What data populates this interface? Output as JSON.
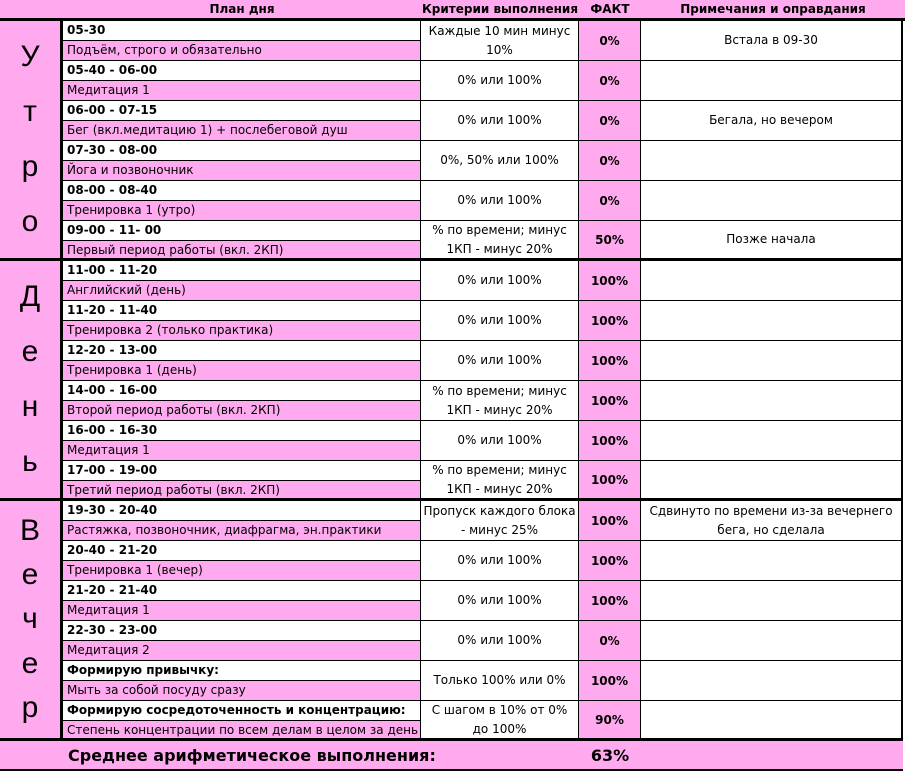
{
  "header": {
    "plan": "План дня",
    "criteria": "Критерии выполнения",
    "fact": "ФАКТ",
    "notes": "Примечания и оправдания"
  },
  "colors": {
    "accent_pink": "#ffaaee",
    "border": "#000000"
  },
  "sections": [
    {
      "label": "Утро",
      "letters": [
        "У",
        "т",
        "р",
        "о"
      ],
      "rows": [
        {
          "time": "05-30",
          "task": "Подъём, строго и обязательно",
          "criteria": "Каждые 10 мин минус 10%",
          "fact": "0%",
          "note": "Встала в 09-30"
        },
        {
          "time": "05-40 - 06-00",
          "task": "Медитация 1",
          "criteria": "0% или 100%",
          "fact": "0%",
          "note": ""
        },
        {
          "time": "06-00 - 07-15",
          "task": "Бег (вкл.медитацию 1) + послебеговой душ",
          "criteria": "0% или 100%",
          "fact": "0%",
          "note": "Бегала, но вечером"
        },
        {
          "time": "07-30 - 08-00",
          "task": "Йога и позвоночник",
          "criteria": "0%, 50% или 100%",
          "fact": "0%",
          "note": ""
        },
        {
          "time": "08-00 - 08-40",
          "task": "Тренировка 1 (утро)",
          "criteria": "0% или 100%",
          "fact": "0%",
          "note": ""
        },
        {
          "time": "09-00 - 11- 00",
          "task": "Первый период работы (вкл. 2КП)",
          "criteria": "% по времени; минус 1КП - минус 20%",
          "fact": "50%",
          "note": "Позже начала"
        }
      ]
    },
    {
      "label": "День",
      "letters": [
        "Д",
        "е",
        "н",
        "ь"
      ],
      "rows": [
        {
          "time": "11-00 - 11-20",
          "task": "Английский (день)",
          "criteria": "0% или 100%",
          "fact": "100%",
          "note": ""
        },
        {
          "time": "11-20 - 11-40",
          "task": "Тренировка 2 (только практика)",
          "criteria": "0% или 100%",
          "fact": "100%",
          "note": ""
        },
        {
          "time": "12-20 - 13-00",
          "task": "Тренировка 1 (день)",
          "criteria": "0% или 100%",
          "fact": "100%",
          "note": ""
        },
        {
          "time": "14-00 - 16-00",
          "task": "Второй период работы (вкл. 2КП)",
          "criteria": "% по времени; минус 1КП - минус 20%",
          "fact": "100%",
          "note": ""
        },
        {
          "time": "16-00 - 16-30",
          "task": "Медитация 1",
          "criteria": "0% или 100%",
          "fact": "100%",
          "note": ""
        },
        {
          "time": "17-00 - 19-00",
          "task": "Третий период работы (вкл. 2КП)",
          "criteria": "% по времени; минус 1КП - минус 20%",
          "fact": "100%",
          "note": ""
        }
      ]
    },
    {
      "label": "Вечер",
      "letters": [
        "В",
        "е",
        "ч",
        "е",
        "р"
      ],
      "rows": [
        {
          "time": "19-30 - 20-40",
          "task": "Растяжка, позвоночник, диафрагма, эн.практики",
          "criteria": "Пропуск каждого блока - минус 25%",
          "fact": "100%",
          "note": "Сдвинуто по времени из-за вечернего бега, но сделала"
        },
        {
          "time": "20-40 - 21-20",
          "task": "Тренировка 1 (вечер)",
          "criteria": "0% или 100%",
          "fact": "100%",
          "note": ""
        },
        {
          "time": "21-20 - 21-40",
          "task": "Медитация 1",
          "criteria": "0% или 100%",
          "fact": "100%",
          "note": ""
        },
        {
          "time": "22-30 - 23-00",
          "task": "Медитация 2",
          "criteria": "0% или 100%",
          "fact": "0%",
          "note": ""
        },
        {
          "time": "Формирую привычку:",
          "task": "Мыть за собой посуду сразу",
          "criteria": "Только 100% или 0%",
          "fact": "100%",
          "note": ""
        },
        {
          "time": "Формирую сосредоточенность и концентрацию:",
          "task": "Степень концентрации по всем делам в целом за день",
          "criteria": "С шагом в 10% от 0% до 100%",
          "fact": "90%",
          "note": ""
        }
      ]
    }
  ],
  "footer": {
    "label": "Среднее арифметическое выполнения:",
    "value": "63%"
  }
}
